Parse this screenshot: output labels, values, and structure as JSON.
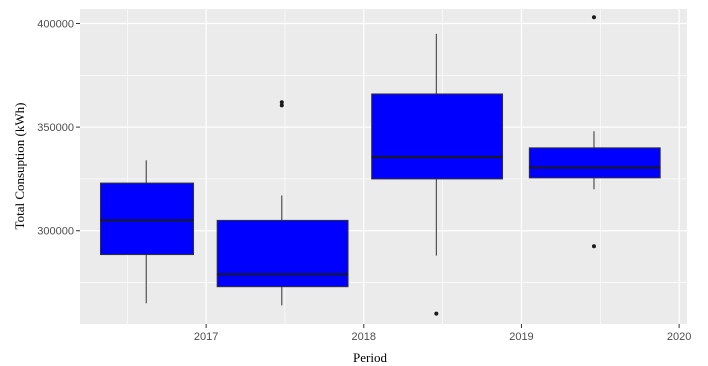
{
  "chart_data": {
    "type": "boxplot",
    "title": "",
    "xlabel": "Period",
    "ylabel": "Total Consuption (kWh)",
    "x_ticks": [
      2017,
      2018,
      2019,
      2020
    ],
    "y_ticks": [
      300000,
      350000,
      400000
    ],
    "xlim": [
      2016.2,
      2020.05
    ],
    "ylim": [
      255000,
      407000
    ],
    "grid": true,
    "colors": {
      "box_fill": "#0000ff",
      "panel_bg": "#ebebeb",
      "grid": "#ffffff"
    },
    "boxes": [
      {
        "x_start": 2016.33,
        "x_end": 2016.92,
        "whisker_x": 2016.62,
        "whisker_low": 265000,
        "q1": 288500,
        "median": 305000,
        "q3": 323000,
        "whisker_high": 334000,
        "outliers": []
      },
      {
        "x_start": 2017.07,
        "x_end": 2017.9,
        "whisker_x": 2017.48,
        "whisker_low": 264000,
        "q1": 273000,
        "median": 279000,
        "q3": 305000,
        "whisker_high": 317000,
        "outliers": [
          360500,
          362000
        ]
      },
      {
        "x_start": 2018.05,
        "x_end": 2018.88,
        "whisker_x": 2018.46,
        "whisker_low": 288000,
        "q1": 325000,
        "median": 335500,
        "q3": 366000,
        "whisker_high": 395000,
        "outliers": [
          260000
        ]
      },
      {
        "x_start": 2019.05,
        "x_end": 2019.88,
        "whisker_x": 2019.46,
        "whisker_low": 320000,
        "q1": 325500,
        "median": 330500,
        "q3": 340000,
        "whisker_high": 348000,
        "outliers": [
          292500,
          403000
        ]
      }
    ]
  }
}
